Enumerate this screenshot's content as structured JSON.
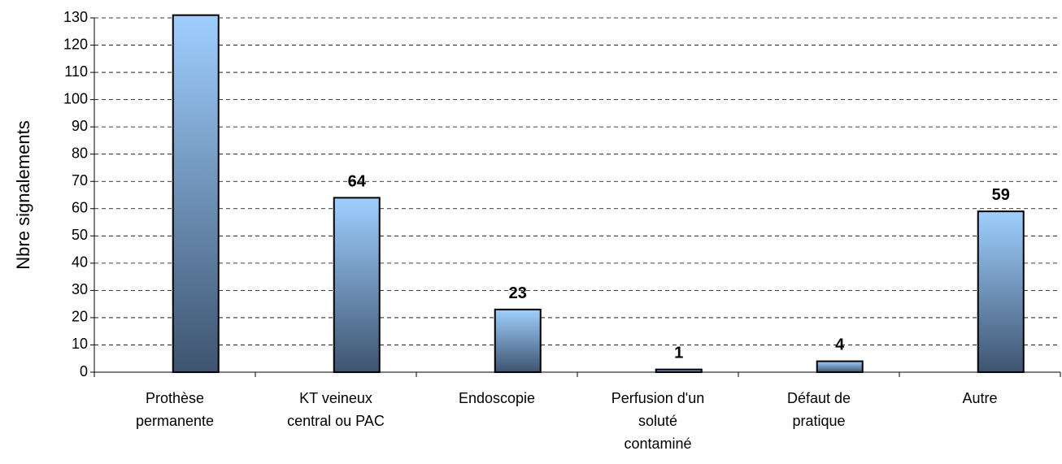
{
  "chart_data": {
    "type": "bar",
    "ylabel": "Nbre signalements",
    "categories": [
      "Prothèse\npermanente",
      "KT veineux\ncentral ou PAC",
      "Endoscopie",
      "Perfusion d'un\nsoluté\ncontaminé",
      "Défaut de\npratique",
      "Autre"
    ],
    "values": [
      131,
      64,
      23,
      1,
      4,
      59
    ],
    "value_labels": [
      null,
      "64",
      "23",
      "1",
      "4",
      "59"
    ],
    "color": [
      "#9fcfff",
      "#3e5470"
    ],
    "ylim": [
      0,
      130
    ],
    "yticks": [
      0,
      10,
      20,
      30,
      40,
      50,
      60,
      70,
      80,
      90,
      100,
      110,
      120,
      130
    ],
    "grid": true
  }
}
